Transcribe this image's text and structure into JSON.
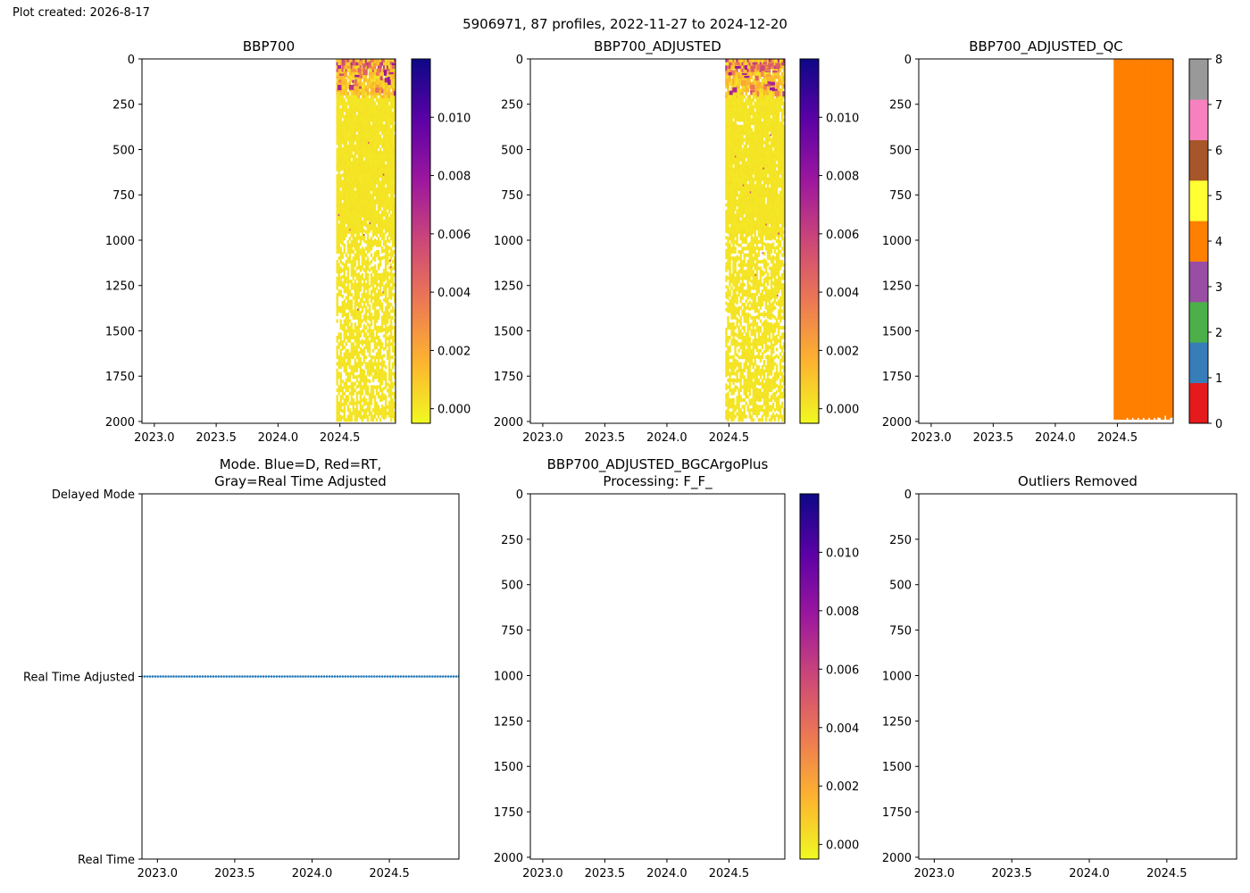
{
  "header": {
    "plot_created": "Plot created: 2026-8-17",
    "suptitle": "5906971, 87 profiles, 2022-11-27 to 2024-12-20"
  },
  "colors": {
    "plasma_r": [
      "#f0f921",
      "#fdb42f",
      "#ed7953",
      "#cc4778",
      "#9c179e",
      "#5c01a6",
      "#0d0887"
    ],
    "qc_colors": [
      "#e41a1c",
      "#377eb8",
      "#4daf4a",
      "#984ea3",
      "#ff7f00",
      "#ffff33",
      "#a65628",
      "#f781bf",
      "#999999"
    ],
    "mode_dots": "#1f77b4"
  },
  "chart_data": [
    {
      "id": "bbp700",
      "type": "heatmap",
      "title": "BBP700",
      "xlim": [
        2022.9,
        2024.95
      ],
      "ylim": [
        2010,
        0
      ],
      "xticks": [
        2023.0,
        2023.5,
        2024.0,
        2024.5
      ],
      "xtick_labels": [
        "2023.0",
        "2023.5",
        "2024.0",
        "2024.5"
      ],
      "yticks": [
        0,
        250,
        500,
        750,
        1000,
        1250,
        1500,
        1750,
        2000
      ],
      "ytick_labels": [
        "0",
        "250",
        "500",
        "750",
        "1000",
        "1250",
        "1500",
        "1750",
        "2000"
      ],
      "data_range": {
        "time": [
          2024.47,
          2024.95
        ],
        "pressure": [
          0,
          2000
        ]
      },
      "colorbar": {
        "cmap": "plasma_r",
        "range": [
          -0.0005,
          0.012
        ],
        "ticks": [
          0,
          0.002,
          0.004,
          0.006,
          0.008,
          0.01
        ],
        "tick_labels": [
          "0.000",
          "0.002",
          "0.004",
          "0.006",
          "0.008",
          "0.010"
        ]
      }
    },
    {
      "id": "bbp700-adjusted",
      "type": "heatmap",
      "title": "BBP700_ADJUSTED",
      "xlim": [
        2022.9,
        2024.95
      ],
      "ylim": [
        2010,
        0
      ],
      "xticks": [
        2023.0,
        2023.5,
        2024.0,
        2024.5
      ],
      "xtick_labels": [
        "2023.0",
        "2023.5",
        "2024.0",
        "2024.5"
      ],
      "yticks": [
        0,
        250,
        500,
        750,
        1000,
        1250,
        1500,
        1750,
        2000
      ],
      "ytick_labels": [
        "0",
        "250",
        "500",
        "750",
        "1000",
        "1250",
        "1500",
        "1750",
        "2000"
      ],
      "data_range": {
        "time": [
          2024.47,
          2024.95
        ],
        "pressure": [
          0,
          2000
        ]
      },
      "colorbar": {
        "cmap": "plasma_r",
        "range": [
          -0.0005,
          0.012
        ],
        "ticks": [
          0,
          0.002,
          0.004,
          0.006,
          0.008,
          0.01
        ],
        "tick_labels": [
          "0.000",
          "0.002",
          "0.004",
          "0.006",
          "0.008",
          "0.010"
        ]
      }
    },
    {
      "id": "bbp700-adjusted-qc",
      "type": "heatmap",
      "title": "BBP700_ADJUSTED_QC",
      "xlim": [
        2022.9,
        2024.95
      ],
      "ylim": [
        2010,
        0
      ],
      "xticks": [
        2023.0,
        2023.5,
        2024.0,
        2024.5
      ],
      "xtick_labels": [
        "2023.0",
        "2023.5",
        "2024.0",
        "2024.5"
      ],
      "yticks": [
        0,
        250,
        500,
        750,
        1000,
        1250,
        1500,
        1750,
        2000
      ],
      "ytick_labels": [
        "0",
        "250",
        "500",
        "750",
        "1000",
        "1250",
        "1500",
        "1750",
        "2000"
      ],
      "data_range": {
        "time": [
          2024.47,
          2024.95
        ],
        "pressure": [
          0,
          1990
        ]
      },
      "qc_value": 4,
      "colorbar": {
        "cmap": "qc_colors",
        "range": [
          0,
          8
        ],
        "ticks": [
          0,
          1,
          2,
          3,
          4,
          5,
          6,
          7,
          8
        ],
        "tick_labels": [
          "0",
          "1",
          "2",
          "3",
          "4",
          "5",
          "6",
          "7",
          "8"
        ]
      }
    },
    {
      "id": "mode",
      "type": "scatter",
      "title": "Mode. Blue=D, Red=RT,\nGray=Real Time Adjusted",
      "xlim": [
        2022.9,
        2024.95
      ],
      "ylim": [
        0,
        2
      ],
      "xticks": [
        2023.0,
        2023.5,
        2024.0,
        2024.5
      ],
      "xtick_labels": [
        "2023.0",
        "2023.5",
        "2024.0",
        "2024.5"
      ],
      "yticks": [
        2,
        1,
        0
      ],
      "ytick_labels": [
        "Delayed Mode",
        "Real Time Adjusted",
        "Real Time"
      ],
      "points_y": 1,
      "points_x_range": [
        2022.9,
        2024.95
      ],
      "n_profiles": 87
    },
    {
      "id": "bgcargoplus",
      "type": "heatmap",
      "title": "BBP700_ADJUSTED_BGCArgoPlus\nProcessing: F_F_",
      "xlim": [
        2022.9,
        2024.95
      ],
      "ylim": [
        2010,
        0
      ],
      "xticks": [
        2023.0,
        2023.5,
        2024.0,
        2024.5
      ],
      "xtick_labels": [
        "2023.0",
        "2023.5",
        "2024.0",
        "2024.5"
      ],
      "yticks": [
        0,
        250,
        500,
        750,
        1000,
        1250,
        1500,
        1750,
        2000
      ],
      "ytick_labels": [
        "0",
        "250",
        "500",
        "750",
        "1000",
        "1250",
        "1500",
        "1750",
        "2000"
      ],
      "colorbar": {
        "cmap": "plasma_r",
        "range": [
          -0.0005,
          0.012
        ],
        "ticks": [
          0,
          0.002,
          0.004,
          0.006,
          0.008,
          0.01
        ],
        "tick_labels": [
          "0.000",
          "0.002",
          "0.004",
          "0.006",
          "0.008",
          "0.010"
        ]
      }
    },
    {
      "id": "outliers",
      "type": "scatter",
      "title": "Outliers Removed",
      "xlim": [
        2022.9,
        2024.95
      ],
      "ylim": [
        2010,
        0
      ],
      "xticks": [
        2023.0,
        2023.5,
        2024.0,
        2024.5
      ],
      "xtick_labels": [
        "2023.0",
        "2023.5",
        "2024.0",
        "2024.5"
      ],
      "yticks": [
        0,
        250,
        500,
        750,
        1000,
        1250,
        1500,
        1750,
        2000
      ],
      "ytick_labels": [
        "0",
        "250",
        "500",
        "750",
        "1000",
        "1250",
        "1500",
        "1750",
        "2000"
      ]
    }
  ]
}
